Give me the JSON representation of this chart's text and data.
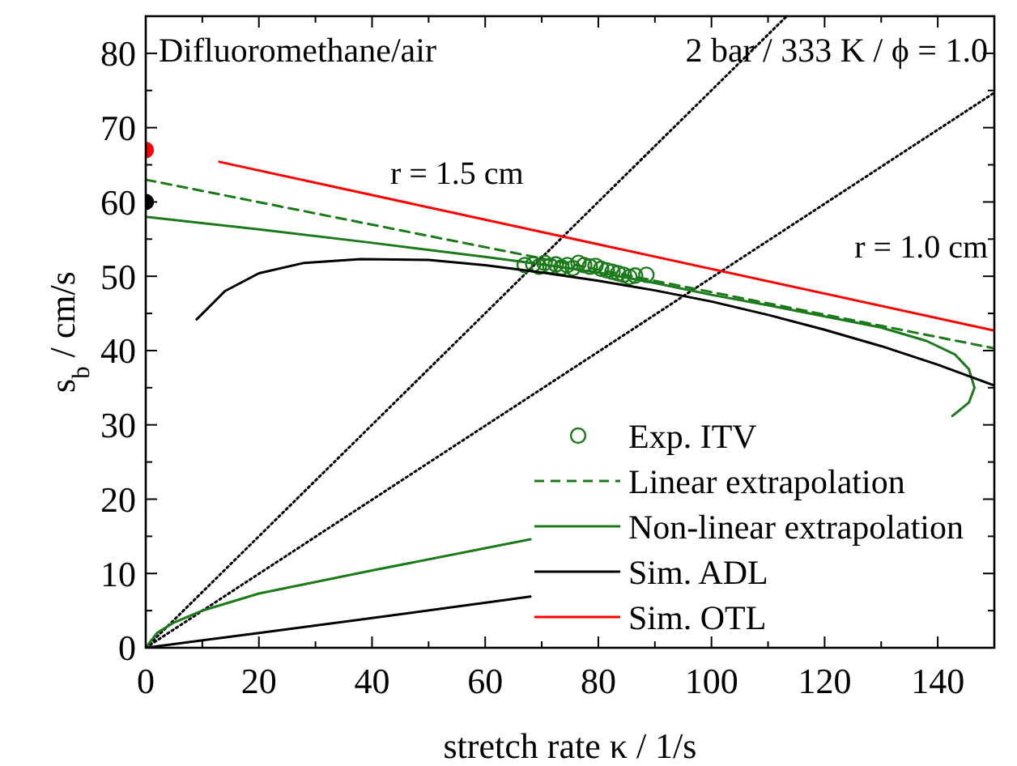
{
  "chart_data": {
    "type": "line",
    "xlabel": "stretch rate κ / 1/s",
    "ylabel": "s$_{b}$ / cm/s",
    "xlim": [
      0,
      150
    ],
    "ylim": [
      0,
      85
    ],
    "xticks": [
      0,
      {
        "value": 10,
        "label": null
      },
      20,
      {
        "value": 30,
        "label": null
      },
      40,
      {
        "value": 50,
        "label": null
      },
      60,
      {
        "value": 70,
        "label": null
      },
      80,
      {
        "value": 90,
        "label": null
      },
      100,
      {
        "value": 110,
        "label": null
      },
      120,
      {
        "value": 130,
        "label": null
      },
      140,
      {
        "value": 150,
        "label": null
      }
    ],
    "yticks": [
      0,
      {
        "value": 5,
        "label": null
      },
      10,
      {
        "value": 15,
        "label": null
      },
      20,
      {
        "value": 25,
        "label": null
      },
      30,
      {
        "value": 35,
        "label": null
      },
      40,
      {
        "value": 45,
        "label": null
      },
      50,
      {
        "value": 55,
        "label": null
      },
      60,
      {
        "value": 65,
        "label": null
      },
      70,
      {
        "value": 75,
        "label": null
      },
      80,
      {
        "value": 85,
        "label": null
      }
    ],
    "grid": false,
    "legend": "bottom right",
    "annotations": [
      "Difluoromethane/air",
      "2 bar / 333 K / ϕ = 1.0",
      "r = 1.5 cm",
      "r = 1.0 cm"
    ],
    "series": [
      {
        "line_style": "dotted",
        "color": "#000000",
        "x": [
          0,
          113.3
        ],
        "values": [
          0,
          85
        ]
      },
      {
        "line_style": "dotted",
        "color": "#000000",
        "x": [
          0,
          150
        ],
        "values": [
          0,
          74.7
        ]
      },
      {
        "name": "Exp. ITV",
        "type": "scatter",
        "marker": "circle",
        "color": "#1a7a1a",
        "x": [
          67,
          68.5,
          69.5,
          70.5,
          71.5,
          72.5,
          73.5,
          74.5,
          75.5,
          76.5,
          77.5,
          78.5,
          79.5,
          80.5,
          81.5,
          82.5,
          83.5,
          84.5,
          85.5,
          86.5,
          88.5
        ],
        "values": [
          51.5,
          51.6,
          51.3,
          51.8,
          51.4,
          51.6,
          51.2,
          51.5,
          51.1,
          51.8,
          51.5,
          51.3,
          51.4,
          51,
          50.8,
          50.6,
          50.4,
          50.2,
          49.9,
          50.1,
          50.2
        ]
      },
      {
        "name": "Linear extrapolation",
        "line_style": "dashed",
        "color": "#1a7a1a",
        "x": [
          0,
          150
        ],
        "values": [
          63,
          40.3
        ]
      },
      {
        "name": "Non-linear extrapolation",
        "line_style": "solid",
        "color": "#1a7a1a",
        "x": [
          0,
          20,
          40,
          60,
          70,
          80,
          90,
          100,
          110,
          120,
          130,
          138,
          143,
          145.5,
          146.5,
          145.5,
          142.6
        ],
        "values": [
          58,
          56.3,
          54.5,
          52.6,
          51.6,
          50.5,
          49.1,
          47.5,
          46.1,
          44.6,
          43.1,
          41.3,
          39.5,
          37.5,
          35,
          33,
          31.2
        ]
      },
      {
        "line_style": "solid",
        "color": "#1a7a1a",
        "x": [
          0,
          2,
          5,
          10,
          20,
          40,
          68
        ],
        "values": [
          0,
          2,
          3.4,
          5,
          7.3,
          10.4,
          14.6
        ]
      },
      {
        "name": "Sim. ADL",
        "line_style": "solid",
        "color": "#000000",
        "x": [
          9,
          14,
          20,
          28,
          38,
          50,
          60,
          70,
          80,
          90,
          100,
          110,
          120,
          130,
          140,
          150
        ],
        "values": [
          44.2,
          48,
          50.4,
          51.8,
          52.3,
          52.2,
          51.5,
          50.5,
          49.4,
          48.1,
          46.6,
          44.8,
          42.8,
          40.6,
          38.1,
          35.3
        ]
      },
      {
        "line_style": "solid",
        "color": "#000000",
        "x": [
          0,
          20,
          40,
          68
        ],
        "values": [
          0,
          2,
          4,
          6.9
        ]
      },
      {
        "name": "Sim. OTL",
        "line_style": "solid",
        "color": "#ff0000",
        "x": [
          13,
          80,
          150
        ],
        "values": [
          65.4,
          54.3,
          42.7
        ]
      },
      {
        "type": "scatter",
        "marker": "circle",
        "colors": [
          "#ff0000",
          "#000000"
        ],
        "x": [
          0,
          0
        ],
        "values": [
          67,
          60
        ]
      }
    ]
  }
}
